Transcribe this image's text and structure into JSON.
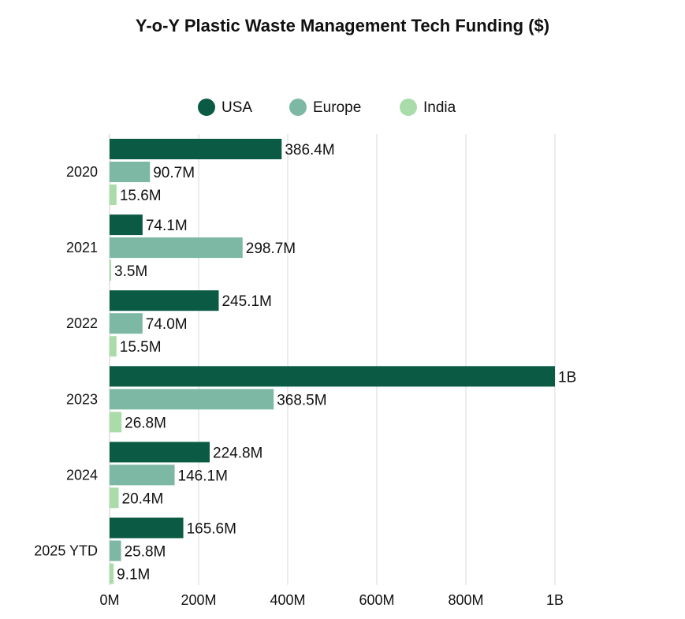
{
  "chart_data": {
    "type": "bar",
    "orientation": "horizontal",
    "title": "Y-o-Y  Plastic Waste Management Tech Funding ($)",
    "categories": [
      "2020",
      "2021",
      "2022",
      "2023",
      "2024",
      "2025 YTD"
    ],
    "series": [
      {
        "name": "USA",
        "color": "#0b5a44",
        "values": [
          386.4,
          74.1,
          245.1,
          1000,
          224.8,
          165.6
        ],
        "labels": [
          "386.4M",
          "74.1M",
          "245.1M",
          "1B",
          "224.8M",
          "165.6M"
        ]
      },
      {
        "name": "Europe",
        "color": "#7db8a5",
        "values": [
          90.7,
          298.7,
          74.0,
          368.5,
          146.1,
          25.8
        ],
        "labels": [
          "90.7M",
          "298.7M",
          "74.0M",
          "368.5M",
          "146.1M",
          "25.8M"
        ]
      },
      {
        "name": "India",
        "color": "#a9dca9",
        "values": [
          15.6,
          3.5,
          15.5,
          26.8,
          20.4,
          9.1
        ],
        "labels": [
          "15.6M",
          "3.5M",
          "15.5M",
          "26.8M",
          "20.4M",
          "9.1M"
        ]
      }
    ],
    "xlim": [
      0,
      1000
    ],
    "xticks": [
      0,
      200,
      400,
      600,
      800,
      1000
    ],
    "xtick_labels": [
      "0M",
      "200M",
      "400M",
      "600M",
      "800M",
      "1B"
    ],
    "grid": true,
    "legend": "top-center",
    "xlabel": "",
    "ylabel": "",
    "units": "M USD"
  }
}
